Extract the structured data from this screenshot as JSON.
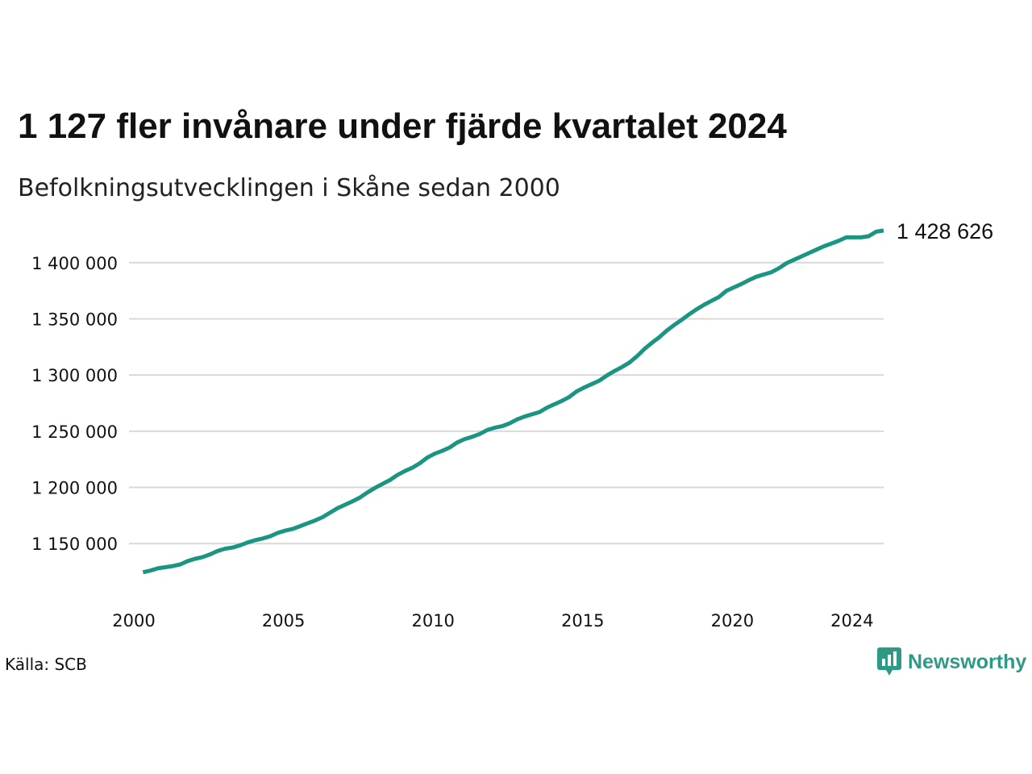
{
  "title": "1 127 fler invånare under fjärde kvartalet 2024",
  "subtitle": "Befolkningsutvecklingen i Skåne sedan 2000",
  "source": "Källa: SCB",
  "brand": {
    "name": "Newsworthy",
    "icon": "newsworthy-logo-icon",
    "color": "#2e9a86"
  },
  "colors": {
    "line": "#1a9582",
    "grid": "#d9d9d9"
  },
  "chart_data": {
    "type": "line",
    "title": "1 127 fler invånare under fjärde kvartalet 2024",
    "subtitle": "Befolkningsutvecklingen i Skåne sedan 2000",
    "xlabel": "",
    "ylabel": "",
    "x_ticks": [
      "2000",
      "2005",
      "2010",
      "2015",
      "2020",
      "2024"
    ],
    "y_ticks": [
      "1 150 000",
      "1 200 000",
      "1 250 000",
      "1 300 000",
      "1 350 000",
      "1 400 000"
    ],
    "ylim": [
      1115000,
      1440000
    ],
    "xlim": [
      2000.0,
      2025.0
    ],
    "grid": true,
    "end_label": "1 428 626",
    "series": [
      {
        "x": [
          2000.25,
          2000.5,
          2000.75,
          2001.0,
          2001.25,
          2001.5,
          2001.75,
          2002.0,
          2002.25,
          2002.5,
          2002.75,
          2003.0,
          2003.25,
          2003.5,
          2003.75,
          2004.0,
          2004.25,
          2004.5,
          2004.75,
          2005.0,
          2005.25,
          2005.5,
          2005.75,
          2006.0,
          2006.25,
          2006.5,
          2006.75,
          2007.0,
          2007.25,
          2007.5,
          2007.75,
          2008.0,
          2008.25,
          2008.5,
          2008.75,
          2009.0,
          2009.25,
          2009.5,
          2009.75,
          2010.0,
          2010.25,
          2010.5,
          2010.75,
          2011.0,
          2011.25,
          2011.5,
          2011.75,
          2012.0,
          2012.25,
          2012.5,
          2012.75,
          2013.0,
          2013.25,
          2013.5,
          2013.75,
          2014.0,
          2014.25,
          2014.5,
          2014.75,
          2015.0,
          2015.25,
          2015.5,
          2015.75,
          2016.0,
          2016.25,
          2016.5,
          2016.75,
          2017.0,
          2017.25,
          2017.5,
          2017.75,
          2018.0,
          2018.25,
          2018.5,
          2018.75,
          2019.0,
          2019.25,
          2019.5,
          2019.75,
          2020.0,
          2020.25,
          2020.5,
          2020.75,
          2021.0,
          2021.25,
          2021.5,
          2021.75,
          2022.0,
          2022.25,
          2022.5,
          2022.75,
          2023.0,
          2023.25,
          2023.5,
          2023.75,
          2024.0,
          2024.25,
          2024.5,
          2024.75,
          2025.0
        ],
        "values": [
          1124500,
          1126000,
          1128000,
          1129000,
          1130000,
          1131500,
          1134500,
          1136500,
          1138000,
          1140500,
          1143500,
          1145500,
          1146500,
          1148500,
          1151000,
          1153000,
          1154500,
          1156500,
          1159500,
          1161500,
          1163000,
          1165500,
          1168000,
          1170500,
          1173500,
          1177500,
          1181500,
          1184500,
          1187500,
          1191000,
          1195500,
          1199500,
          1203000,
          1206500,
          1211000,
          1214500,
          1217500,
          1221500,
          1226500,
          1230000,
          1232500,
          1235500,
          1240000,
          1243000,
          1245000,
          1247500,
          1251000,
          1253000,
          1254500,
          1257000,
          1260500,
          1263000,
          1265000,
          1267000,
          1271000,
          1274000,
          1277000,
          1280500,
          1285500,
          1289000,
          1292000,
          1295000,
          1299500,
          1303500,
          1307000,
          1311000,
          1316500,
          1323000,
          1328500,
          1333500,
          1339500,
          1344500,
          1349000,
          1354000,
          1358500,
          1362500,
          1366000,
          1369500,
          1375000,
          1378000,
          1381000,
          1384500,
          1387500,
          1389500,
          1391500,
          1395000,
          1399500,
          1402500,
          1405500,
          1408500,
          1411500,
          1414500,
          1417000,
          1419500,
          1422500,
          1422500,
          1422500,
          1423500,
          1427500,
          1428626
        ]
      }
    ]
  }
}
